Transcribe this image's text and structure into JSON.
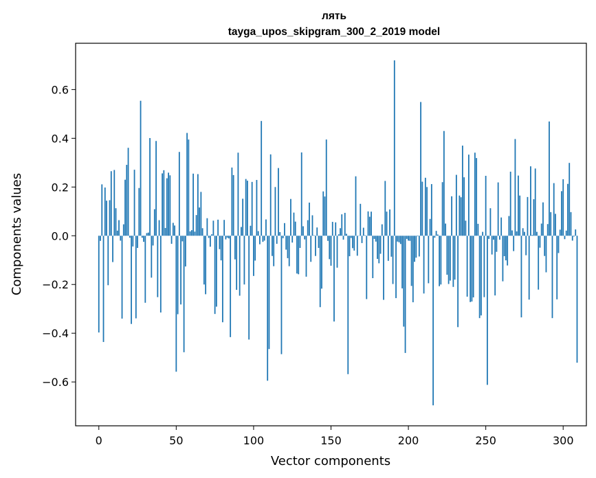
{
  "chart_data": {
    "type": "bar",
    "title": "лять",
    "subtitle": "tayga_upos_skipgram_300_2_2019 model",
    "xlabel": "Vector components",
    "ylabel": "Components values",
    "xlim": [
      -15,
      315
    ],
    "ylim": [
      -0.78,
      0.79
    ],
    "xticks": [
      0,
      50,
      100,
      150,
      200,
      250,
      300
    ],
    "yticks": [
      -0.6,
      -0.4,
      -0.2,
      0.0,
      0.2,
      0.4,
      0.6
    ],
    "ytick_labels": [
      "−0.6",
      "−0.4",
      "−0.2",
      "0.0",
      "0.2",
      "0.4",
      "0.6"
    ],
    "grid": false,
    "bar_color": "#1f77b4",
    "values": [
      -0.397,
      -0.021,
      0.211,
      -0.436,
      0.198,
      0.144,
      -0.203,
      0.146,
      0.265,
      -0.108,
      0.27,
      0.113,
      0.021,
      0.064,
      -0.02,
      -0.34,
      0.047,
      0.23,
      0.291,
      0.361,
      -0.008,
      -0.362,
      -0.044,
      0.271,
      -0.339,
      -0.05,
      0.196,
      0.554,
      -0.008,
      -0.025,
      -0.275,
      0.011,
      0.013,
      0.401,
      -0.172,
      -0.04,
      0.109,
      0.389,
      -0.252,
      0.064,
      -0.315,
      0.256,
      0.269,
      0.032,
      0.236,
      0.259,
      0.248,
      -0.033,
      0.053,
      0.042,
      -0.558,
      -0.322,
      0.344,
      -0.282,
      -0.023,
      -0.478,
      -0.126,
      0.422,
      0.395,
      0.018,
      0.023,
      0.255,
      0.017,
      0.085,
      0.253,
      0.116,
      0.18,
      0.031,
      -0.2,
      -0.24,
      0.072,
      -0.009,
      -0.045,
      0.006,
      0.062,
      -0.321,
      -0.291,
      0.066,
      -0.055,
      -0.101,
      -0.355,
      0.065,
      -0.015,
      -0.008,
      -0.011,
      -0.416,
      0.28,
      0.249,
      -0.097,
      -0.222,
      0.341,
      -0.246,
      0.036,
      0.152,
      -0.2,
      0.233,
      0.226,
      -0.426,
      0.041,
      0.221,
      -0.165,
      -0.102,
      0.229,
      0.019,
      -0.035,
      0.471,
      -0.025,
      -0.02,
      0.067,
      -0.595,
      -0.465,
      0.334,
      -0.083,
      -0.125,
      0.2,
      -0.033,
      0.278,
      0.015,
      -0.486,
      -0.01,
      0.052,
      -0.057,
      -0.092,
      -0.125,
      0.151,
      -0.028,
      0.095,
      0.058,
      -0.155,
      -0.158,
      -0.05,
      0.342,
      0.039,
      -0.015,
      -0.168,
      0.064,
      0.136,
      -0.107,
      0.084,
      0.002,
      -0.083,
      0.034,
      -0.05,
      -0.293,
      -0.217,
      0.182,
      0.161,
      0.395,
      -0.021,
      -0.096,
      -0.123,
      0.057,
      -0.352,
      0.055,
      -0.131,
      0.006,
      0.031,
      0.088,
      -0.016,
      0.094,
      0.008,
      -0.568,
      -0.084,
      -0.009,
      -0.051,
      -0.061,
      0.244,
      -0.082,
      0.001,
      0.131,
      -0.03,
      0.033,
      0.002,
      -0.26,
      0.1,
      0.078,
      0.099,
      -0.174,
      -0.013,
      -0.024,
      -0.095,
      -0.113,
      -0.074,
      0.047,
      -0.263,
      0.225,
      0.099,
      -0.103,
      0.108,
      -0.086,
      -0.198,
      0.72,
      -0.256,
      -0.024,
      -0.027,
      -0.034,
      -0.216,
      -0.373,
      -0.481,
      -0.013,
      -0.02,
      -0.021,
      -0.206,
      -0.273,
      -0.107,
      -0.09,
      -0.002,
      -0.085,
      0.549,
      0.222,
      -0.237,
      0.238,
      0.2,
      -0.195,
      0.069,
      0.212,
      -0.696,
      -0.008,
      0.02,
      0.005,
      -0.207,
      -0.2,
      0.22,
      0.43,
      0.05,
      -0.16,
      -0.198,
      -0.184,
      0.162,
      -0.21,
      -0.18,
      0.25,
      -0.375,
      0.165,
      0.158,
      0.37,
      0.24,
      0.062,
      -0.25,
      0.333,
      -0.272,
      -0.27,
      -0.253,
      0.341,
      0.319,
      0.049,
      -0.338,
      -0.327,
      0.016,
      -0.252,
      0.246,
      -0.612,
      -0.013,
      0.113,
      -0.077,
      -0.016,
      -0.245,
      -0.066,
      0.219,
      -0.016,
      0.075,
      -0.187,
      -0.084,
      -0.101,
      -0.122,
      0.081,
      0.263,
      0.022,
      -0.063,
      0.397,
      0.018,
      0.247,
      0.165,
      -0.335,
      0.031,
      0.016,
      -0.08,
      0.159,
      -0.262,
      0.285,
      0.003,
      0.15,
      0.276,
      0.016,
      -0.221,
      -0.049,
      0.05,
      0.137,
      -0.083,
      -0.15,
      0.048,
      0.469,
      0.097,
      -0.338,
      0.216,
      0.09,
      -0.261,
      -0.071,
      0.025,
      0.183,
      0.232,
      -0.014,
      0.021,
      0.213,
      0.299,
      0.097,
      -0.02,
      -0.003,
      0.026,
      -0.521
    ]
  }
}
